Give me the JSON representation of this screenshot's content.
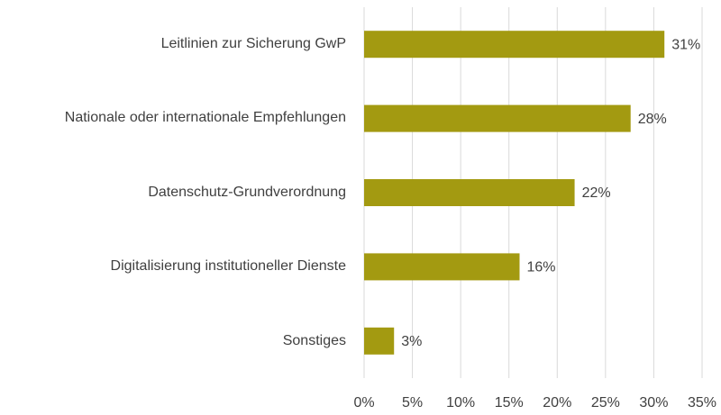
{
  "chart_data": {
    "type": "bar",
    "orientation": "horizontal",
    "categories": [
      "Leitlinien zur Sicherung GwP",
      "Nationale oder internationale Empfehlungen",
      "Datenschutz-Grundverordnung",
      "Digitalisierung institutioneller Dienste",
      "Sonstiges"
    ],
    "values": [
      31.1,
      27.6,
      21.8,
      16.1,
      3.1
    ],
    "value_labels": [
      "31%",
      "28%",
      "22%",
      "16%",
      "3%"
    ],
    "color": "#a39a11",
    "xlim": [
      0,
      35
    ],
    "xticks": [
      {
        "value": 0,
        "label": "0%"
      },
      {
        "value": 5,
        "label": "5%"
      },
      {
        "value": 10,
        "label": "10%"
      },
      {
        "value": 15,
        "label": "15%"
      },
      {
        "value": 20,
        "label": "20%"
      },
      {
        "value": 25,
        "label": "25%"
      },
      {
        "value": 30,
        "label": "30%"
      },
      {
        "value": 35,
        "label": "35%"
      }
    ],
    "grid": true
  }
}
